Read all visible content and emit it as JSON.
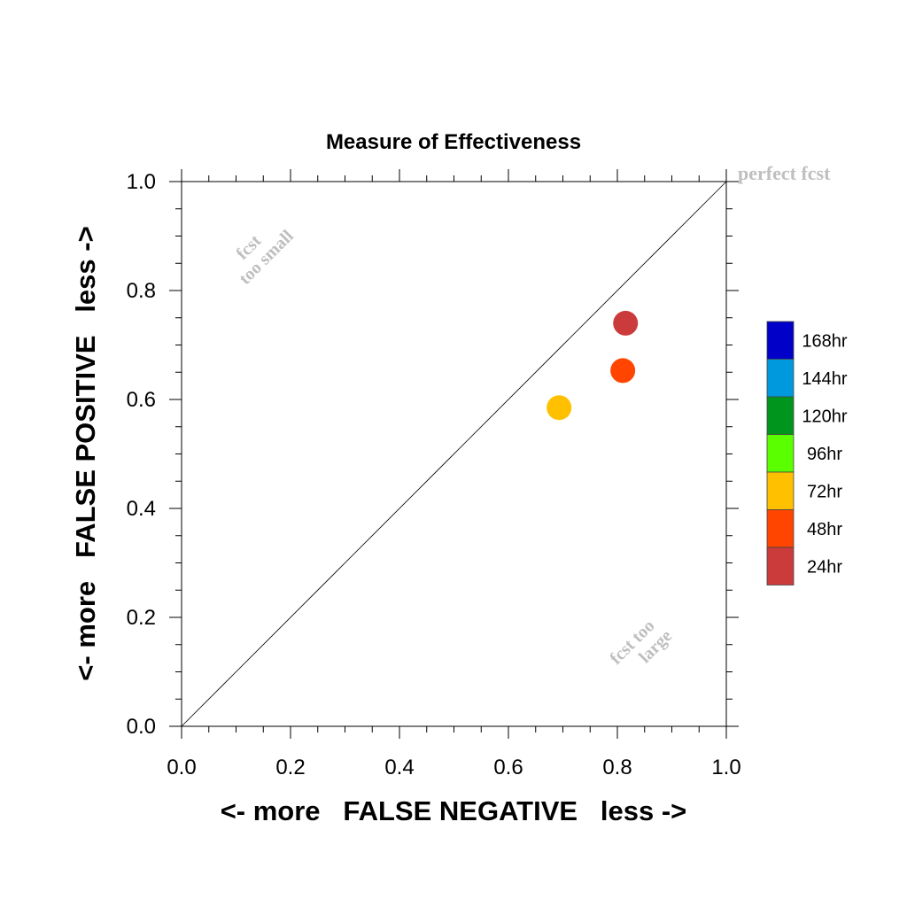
{
  "chart_data": {
    "type": "scatter",
    "title": "Measure of Effectiveness",
    "xlabel": "<- more   FALSE NEGATIVE   less ->",
    "ylabel": "<- more   FALSE POSITIVE   less ->",
    "xlim": [
      0.0,
      1.0
    ],
    "ylim": [
      0.0,
      1.0
    ],
    "x_tick_labels": [
      "0.0",
      "0.2",
      "0.4",
      "0.6",
      "0.8",
      "1.0"
    ],
    "y_tick_labels": [
      "0.0",
      "0.2",
      "0.4",
      "0.6",
      "0.8",
      "1.0"
    ],
    "grid": false,
    "diagonal_reference_line": true,
    "annotations": {
      "perfect": "perfect fcst",
      "too_small_line1": "fcst",
      "too_small_line2": "too small",
      "too_large_line1": "fcst too",
      "too_large_line2": "large"
    },
    "points": [
      {
        "x": 0.815,
        "y": 0.74,
        "lead": "24hr",
        "color": "#cc3b3b"
      },
      {
        "x": 0.81,
        "y": 0.653,
        "lead": "48hr",
        "color": "#ff4500"
      },
      {
        "x": 0.693,
        "y": 0.585,
        "lead": "72hr",
        "color": "#ffc000"
      }
    ],
    "legend": {
      "placement": "right",
      "entries": [
        {
          "label": "168hr",
          "color": "#0000c8"
        },
        {
          "label": "144hr",
          "color": "#0099dd"
        },
        {
          "label": "120hr",
          "color": "#00961e"
        },
        {
          "label": "96hr",
          "color": "#5aff00"
        },
        {
          "label": "72hr",
          "color": "#ffc000"
        },
        {
          "label": "48hr",
          "color": "#ff4500"
        },
        {
          "label": "24hr",
          "color": "#cc3b3b"
        }
      ]
    }
  }
}
